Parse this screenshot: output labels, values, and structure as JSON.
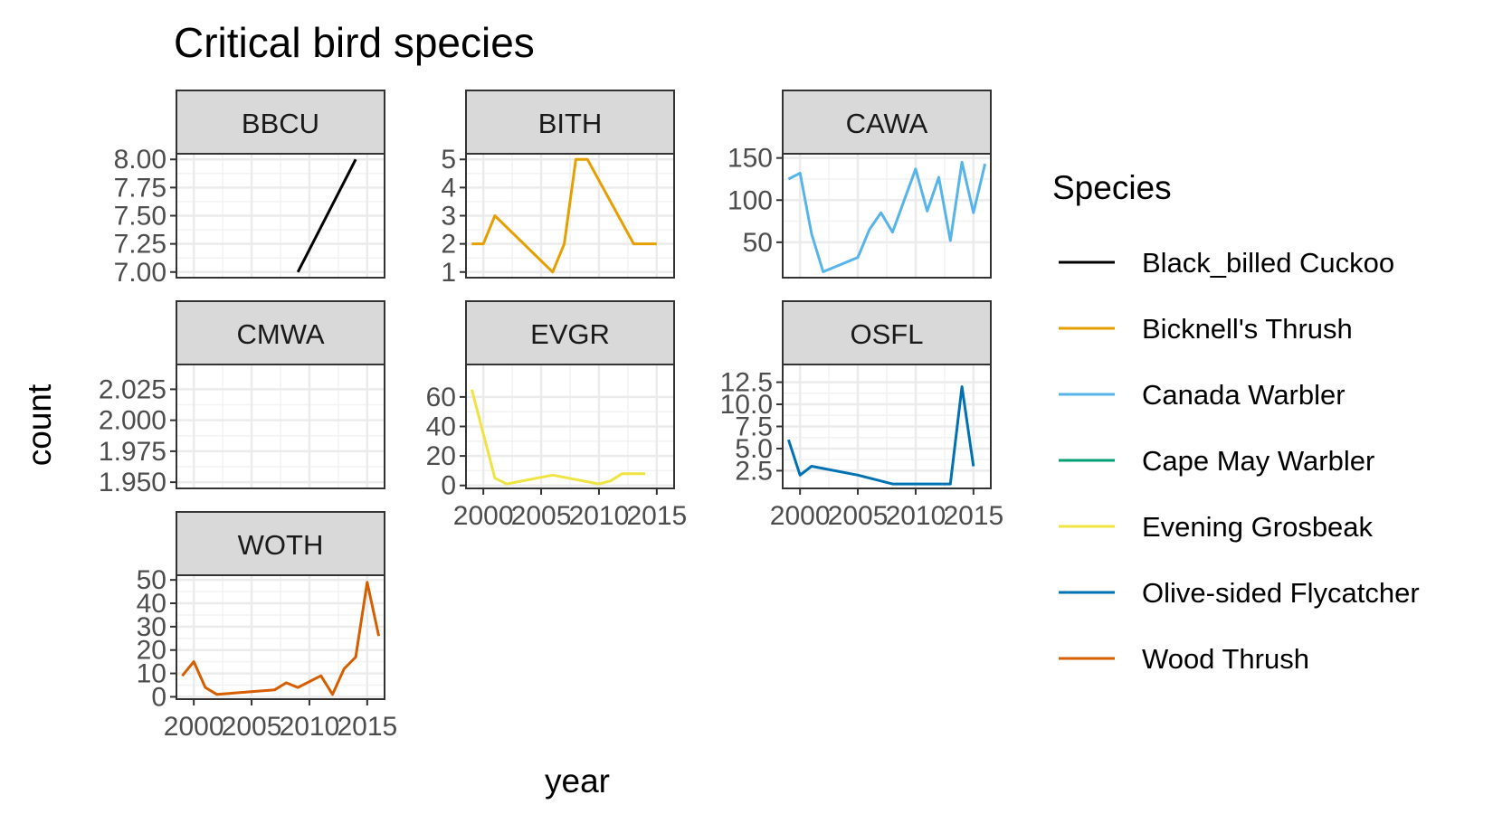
{
  "chart_data": {
    "type": "line",
    "title": "Critical bird species",
    "xlabel": "year",
    "ylabel": "count",
    "xlim": [
      1998.5,
      2016.5
    ],
    "x_ticks": [
      2000,
      2005,
      2010,
      2015
    ],
    "x_tick_labels": [
      "2000",
      "2005",
      "2010",
      "2015"
    ],
    "grid": true,
    "facets": "free_y",
    "legend": {
      "title": "Species",
      "position": "right"
    },
    "panels": [
      {
        "id": "bbcu",
        "label": "BBCU",
        "series": "Black_billed Cuckoo",
        "color": "#000000",
        "ylim": [
          6.95,
          8.05
        ],
        "y_ticks": [
          7.0,
          7.25,
          7.5,
          7.75,
          8.0
        ],
        "y_tick_labels": [
          "7.00",
          "7.25",
          "7.50",
          "7.75",
          "8.00"
        ],
        "x": [
          2009,
          2014
        ],
        "y": [
          7,
          8
        ]
      },
      {
        "id": "bith",
        "label": "BITH",
        "series": "Bicknell's Thrush",
        "color": "#E69F00",
        "ylim": [
          0.8,
          5.2
        ],
        "y_ticks": [
          1,
          2,
          3,
          4,
          5
        ],
        "y_tick_labels": [
          "1",
          "2",
          "3",
          "4",
          "5"
        ],
        "x": [
          1999,
          2000,
          2001,
          2006,
          2007,
          2008,
          2009,
          2013,
          2015
        ],
        "y": [
          2,
          2,
          3,
          1,
          2,
          5,
          5,
          2,
          2
        ]
      },
      {
        "id": "cawa",
        "label": "CAWA",
        "series": "Canada Warbler",
        "color": "#56B4E9",
        "ylim": [
          8,
          155
        ],
        "y_ticks": [
          50,
          100,
          150
        ],
        "y_tick_labels": [
          "50",
          "100",
          "150"
        ],
        "x": [
          1999,
          2000,
          2001,
          2002,
          2005,
          2006,
          2007,
          2008,
          2010,
          2011,
          2012,
          2013,
          2014,
          2015,
          2016
        ],
        "y": [
          125,
          132,
          60,
          15,
          32,
          65,
          85,
          62,
          137,
          87,
          127,
          52,
          145,
          85,
          143
        ]
      },
      {
        "id": "cmwa",
        "label": "CMWA",
        "series": "Cape May Warbler",
        "color": "#009E73",
        "ylim": [
          1.945,
          2.045
        ],
        "y_ticks": [
          1.95,
          1.975,
          2.0,
          2.025
        ],
        "y_tick_labels": [
          "1.950",
          "1.975",
          "2.000",
          "2.025"
        ],
        "x": [],
        "y": []
      },
      {
        "id": "evgr",
        "label": "EVGR",
        "series": "Evening Grosbeak",
        "color": "#F0E442",
        "ylim": [
          -2,
          82
        ],
        "y_ticks": [
          0,
          20,
          40,
          60
        ],
        "y_tick_labels": [
          "0",
          "20",
          "40",
          "60"
        ],
        "x": [
          1999,
          2001,
          2002,
          2006,
          2010,
          2011,
          2012,
          2014
        ],
        "y": [
          65,
          5,
          1,
          7,
          1,
          3,
          8,
          8
        ]
      },
      {
        "id": "osfl",
        "label": "OSFL",
        "series": "Olive-sided Flycatcher",
        "color": "#0072B2",
        "ylim": [
          0.5,
          14.5
        ],
        "y_ticks": [
          2.5,
          5.0,
          7.5,
          10.0,
          12.5
        ],
        "y_tick_labels": [
          "2.5",
          "5.0",
          "7.5",
          "10.0",
          "12.5"
        ],
        "x": [
          1999,
          2000,
          2001,
          2005,
          2008,
          2013,
          2014,
          2015
        ],
        "y": [
          6,
          2,
          3,
          2,
          1,
          1,
          12,
          3
        ]
      },
      {
        "id": "woth",
        "label": "WOTH",
        "series": "Wood Thrush",
        "color": "#D55E00",
        "ylim": [
          -1,
          52
        ],
        "y_ticks": [
          0,
          10,
          20,
          30,
          40,
          50
        ],
        "y_tick_labels": [
          "0",
          "10",
          "20",
          "30",
          "40",
          "50"
        ],
        "x": [
          1999,
          2000,
          2001,
          2002,
          2007,
          2008,
          2009,
          2011,
          2012,
          2013,
          2014,
          2015,
          2016
        ],
        "y": [
          9,
          15,
          4,
          1,
          3,
          6,
          4,
          9,
          1,
          12,
          17,
          49,
          26
        ]
      }
    ]
  }
}
